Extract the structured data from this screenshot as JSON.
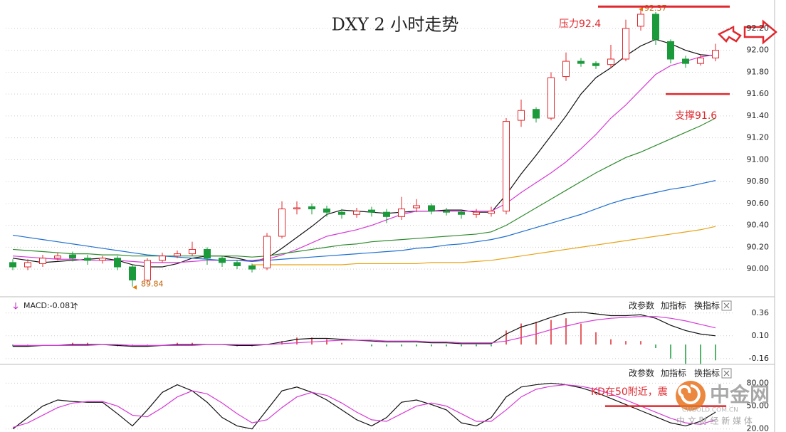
{
  "chart_data": [
    {
      "type": "candlestick",
      "title": "DXY 2 小时走势",
      "open": [
        90.06,
        90.02,
        90.05,
        90.1,
        90.13,
        90.1,
        90.08,
        90.1,
        90.02,
        89.9,
        90.08,
        90.12,
        90.14,
        90.18,
        90.1,
        90.06,
        90.03,
        90.01,
        90.3,
        90.55,
        90.57,
        90.55,
        90.52,
        90.5,
        90.54,
        90.52,
        90.48,
        90.56,
        90.58,
        90.53,
        90.52,
        90.5,
        90.51,
        90.53,
        91.36,
        91.46,
        91.38,
        91.76,
        91.9,
        91.88,
        91.87,
        91.92,
        92.22,
        92.33,
        92.08,
        91.92,
        91.88,
        91.93
      ],
      "high": [
        90.09,
        90.09,
        90.13,
        90.15,
        90.16,
        90.13,
        90.12,
        90.12,
        90.04,
        90.1,
        90.15,
        90.17,
        90.25,
        90.2,
        90.12,
        90.08,
        90.05,
        90.33,
        90.62,
        90.62,
        90.6,
        90.58,
        90.55,
        90.56,
        90.57,
        90.55,
        90.66,
        90.64,
        90.6,
        90.56,
        90.54,
        90.55,
        90.57,
        91.38,
        91.55,
        91.48,
        91.8,
        91.98,
        91.93,
        91.9,
        92.05,
        92.28,
        92.37,
        92.35,
        92.1,
        91.95,
        91.96,
        92.06
      ],
      "low": [
        89.99,
        89.99,
        90.02,
        90.08,
        90.07,
        90.04,
        90.05,
        89.99,
        89.84,
        89.88,
        90.06,
        90.1,
        90.12,
        90.04,
        90.02,
        90.0,
        89.97,
        89.99,
        90.28,
        90.5,
        90.5,
        90.48,
        90.46,
        90.47,
        90.48,
        90.42,
        90.45,
        90.52,
        90.5,
        90.49,
        90.46,
        90.47,
        90.48,
        90.5,
        91.3,
        91.34,
        91.36,
        91.72,
        91.85,
        91.83,
        91.84,
        91.9,
        92.18,
        92.05,
        91.88,
        91.84,
        91.86,
        91.9
      ],
      "close": [
        90.02,
        90.06,
        90.1,
        90.12,
        90.1,
        90.08,
        90.1,
        90.02,
        89.9,
        90.08,
        90.12,
        90.14,
        90.18,
        90.1,
        90.06,
        90.03,
        90.0,
        90.3,
        90.55,
        90.56,
        90.55,
        90.52,
        90.5,
        90.53,
        90.52,
        90.48,
        90.55,
        90.58,
        90.53,
        90.52,
        90.5,
        90.52,
        90.53,
        91.35,
        91.45,
        91.38,
        91.75,
        91.9,
        91.88,
        91.86,
        91.92,
        92.2,
        92.33,
        92.1,
        91.92,
        91.88,
        91.93,
        92.0
      ],
      "up_color": "#e0282e",
      "down_color": "#1a9a3a",
      "series": [
        {
          "color": "#111111",
          "values": [
            90.1,
            90.08,
            90.06,
            90.07,
            90.08,
            90.09,
            90.1,
            90.08,
            90.04,
            90.02,
            90.02,
            90.05,
            90.1,
            90.12,
            90.12,
            90.1,
            90.07,
            90.1,
            90.19,
            90.29,
            90.39,
            90.5,
            90.54,
            90.53,
            90.52,
            90.51,
            90.52,
            90.53,
            90.53,
            90.54,
            90.54,
            90.52,
            90.52,
            90.68,
            90.87,
            91.04,
            91.22,
            91.4,
            91.6,
            91.75,
            91.84,
            91.95,
            92.04,
            92.1,
            92.06,
            92.0,
            91.96,
            91.95
          ]
        },
        {
          "color": "#d63ad6",
          "values": [
            90.12,
            90.11,
            90.1,
            90.09,
            90.09,
            90.08,
            90.08,
            90.08,
            90.07,
            90.06,
            90.06,
            90.06,
            90.07,
            90.08,
            90.08,
            90.08,
            90.08,
            90.09,
            90.13,
            90.18,
            90.24,
            90.3,
            90.33,
            90.36,
            90.4,
            90.45,
            90.5,
            90.53,
            90.53,
            90.53,
            90.53,
            90.53,
            90.53,
            90.6,
            90.7,
            90.79,
            90.88,
            90.98,
            91.1,
            91.23,
            91.38,
            91.5,
            91.64,
            91.78,
            91.86,
            91.9,
            91.94,
            91.96
          ]
        },
        {
          "color": "#2e8b2e",
          "values": [
            90.18,
            90.17,
            90.16,
            90.15,
            90.14,
            90.14,
            90.13,
            90.13,
            90.12,
            90.12,
            90.12,
            90.12,
            90.12,
            90.12,
            90.12,
            90.12,
            90.11,
            90.12,
            90.14,
            90.16,
            90.18,
            90.2,
            90.22,
            90.23,
            90.25,
            90.26,
            90.27,
            90.28,
            90.29,
            90.3,
            90.31,
            90.32,
            90.34,
            90.4,
            90.48,
            90.56,
            90.64,
            90.72,
            90.8,
            90.88,
            90.95,
            91.02,
            91.07,
            91.13,
            91.19,
            91.25,
            91.31,
            91.38
          ]
        },
        {
          "color": "#1e6fd0",
          "values": [
            90.31,
            90.29,
            90.27,
            90.25,
            90.23,
            90.21,
            90.19,
            90.17,
            90.15,
            90.13,
            90.12,
            90.11,
            90.1,
            90.09,
            90.08,
            90.08,
            90.07,
            90.08,
            90.09,
            90.1,
            90.11,
            90.12,
            90.13,
            90.14,
            90.15,
            90.16,
            90.17,
            90.19,
            90.2,
            90.22,
            90.23,
            90.25,
            90.27,
            90.3,
            90.34,
            90.38,
            90.42,
            90.46,
            90.5,
            90.55,
            90.6,
            90.64,
            90.67,
            90.7,
            90.73,
            90.75,
            90.78,
            90.81
          ]
        },
        {
          "color": "#e8a317",
          "values": [
            null,
            null,
            null,
            null,
            null,
            null,
            null,
            null,
            null,
            null,
            null,
            null,
            null,
            null,
            null,
            null,
            90.04,
            90.04,
            90.04,
            90.04,
            90.04,
            90.04,
            90.04,
            90.05,
            90.05,
            90.05,
            90.05,
            90.05,
            90.06,
            90.06,
            90.06,
            90.07,
            90.08,
            90.1,
            90.12,
            90.14,
            90.16,
            90.18,
            90.2,
            90.22,
            90.24,
            90.26,
            90.28,
            90.3,
            90.32,
            90.34,
            90.36,
            90.39
          ]
        }
      ],
      "ylim": [
        89.76,
        92.46
      ],
      "yticks": [
        {
          "value": 90,
          "label": "90.00"
        },
        {
          "value": 90.2,
          "label": "90.20"
        },
        {
          "value": 90.4,
          "label": "90.40"
        },
        {
          "value": 90.6,
          "label": "90.60"
        },
        {
          "value": 90.8,
          "label": "90.80"
        },
        {
          "value": 91,
          "label": "91.00"
        },
        {
          "value": 91.2,
          "label": "91.20"
        },
        {
          "value": 91.4,
          "label": "91.40"
        },
        {
          "value": 91.6,
          "label": "91.60"
        },
        {
          "value": 91.8,
          "label": "91.80"
        },
        {
          "value": 92,
          "label": "92.00"
        },
        {
          "value": 92.2,
          "label": "92.20"
        }
      ],
      "grid": true,
      "resistance": {
        "label": "压力92.4",
        "value": 92.4
      },
      "support": {
        "label": "支撑91.6",
        "value": 91.6
      }
    },
    {
      "type": "macd",
      "label": "MACD:-0.081",
      "buttons": [
        "改参数",
        "加指标",
        "换指标"
      ],
      "series": [
        {
          "color": "#111111",
          "values": [
            -0.02,
            -0.02,
            -0.01,
            -0.01,
            0.0,
            0.0,
            0.0,
            -0.01,
            -0.02,
            -0.02,
            -0.01,
            0.0,
            0.0,
            0.0,
            0.0,
            -0.01,
            -0.01,
            0.0,
            0.03,
            0.06,
            0.07,
            0.07,
            0.06,
            0.05,
            0.04,
            0.03,
            0.03,
            0.03,
            0.02,
            0.02,
            0.01,
            0.01,
            0.01,
            0.12,
            0.2,
            0.25,
            0.31,
            0.36,
            0.37,
            0.35,
            0.33,
            0.33,
            0.34,
            0.3,
            0.22,
            0.16,
            0.12,
            0.1
          ]
        },
        {
          "color": "#d63ad6",
          "values": [
            -0.01,
            -0.01,
            -0.01,
            -0.01,
            -0.01,
            -0.01,
            0.0,
            0.0,
            -0.01,
            -0.01,
            -0.01,
            -0.01,
            -0.01,
            0.0,
            0.0,
            0.0,
            0.0,
            0.0,
            0.01,
            0.02,
            0.03,
            0.04,
            0.05,
            0.05,
            0.05,
            0.04,
            0.04,
            0.04,
            0.03,
            0.03,
            0.02,
            0.02,
            0.02,
            0.04,
            0.08,
            0.12,
            0.17,
            0.21,
            0.25,
            0.28,
            0.3,
            0.31,
            0.32,
            0.32,
            0.3,
            0.27,
            0.23,
            0.19
          ]
        }
      ],
      "histogram": [
        -0.02,
        -0.02,
        0,
        0,
        0.02,
        0.02,
        0,
        -0.02,
        -0.02,
        -0.02,
        0,
        0.02,
        0.02,
        0,
        0,
        -0.02,
        -0.02,
        0,
        0.04,
        0.08,
        0.08,
        0.06,
        0.02,
        0,
        -0.02,
        -0.02,
        -0.02,
        -0.02,
        -0.02,
        -0.02,
        -0.02,
        -0.02,
        -0.02,
        0.16,
        0.24,
        0.26,
        0.28,
        0.3,
        0.24,
        0.14,
        0.06,
        0.04,
        0.04,
        -0.04,
        -0.16,
        -0.22,
        -0.22,
        -0.18
      ],
      "up_color": "#e0282e",
      "down_color": "#1a9a3a",
      "ylim": [
        -0.21,
        0.48
      ],
      "yticks": [
        0.36,
        {
          "value": 0.1,
          "label": "0.10"
        },
        -0.16
      ],
      "grid": true
    },
    {
      "type": "kd",
      "buttons": [
        "改参数",
        "加指标",
        "换指标"
      ],
      "series": [
        {
          "color": "#111111",
          "values": [
            20,
            35,
            50,
            58,
            56,
            55,
            55,
            40,
            24,
            45,
            68,
            78,
            70,
            55,
            35,
            24,
            20,
            45,
            70,
            75,
            68,
            58,
            45,
            32,
            24,
            35,
            55,
            58,
            52,
            45,
            28,
            24,
            35,
            62,
            75,
            78,
            80,
            78,
            74,
            68,
            60,
            52,
            44,
            36,
            28,
            24,
            30,
            42
          ]
        },
        {
          "color": "#d63ad6",
          "values": [
            22,
            28,
            38,
            48,
            54,
            56,
            56,
            50,
            38,
            36,
            48,
            62,
            70,
            66,
            54,
            40,
            28,
            32,
            48,
            62,
            68,
            64,
            54,
            42,
            32,
            30,
            40,
            50,
            54,
            50,
            40,
            30,
            30,
            45,
            62,
            72,
            76,
            78,
            76,
            72,
            66,
            58,
            50,
            42,
            34,
            28,
            26,
            32
          ]
        }
      ],
      "ylim": [
        16,
        100
      ],
      "yticks": [
        {
          "value": 80,
          "label": "80.00"
        },
        {
          "value": 50,
          "label": "50.00"
        },
        {
          "value": 20,
          "label": "20.00"
        }
      ],
      "grid": true,
      "note": {
        "label": "KD在50附近，震",
        "value": 50
      }
    }
  ],
  "watermark": {
    "name": "中金网",
    "site": "CNGOLD.COM.CN",
    "slogan": "中 文 财 经 新 媒 体"
  }
}
